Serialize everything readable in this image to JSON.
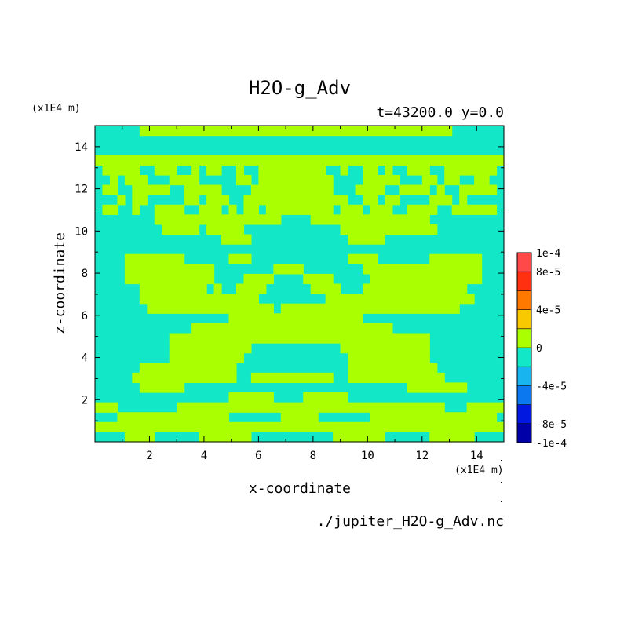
{
  "chart_data": {
    "type": "heatmap",
    "title": "H2O-g_Adv",
    "subtitle": "t=43200.0 y=0.0",
    "xlabel": "x-coordinate",
    "ylabel": "z-coordinate",
    "x_unit": "(x1E4 m)",
    "y_unit": "(x1E4 m)",
    "source": "./jupiter_H2O-g_Adv.nc",
    "xlim": [
      0.0,
      15.0
    ],
    "ylim": [
      0.0,
      15.0
    ],
    "x_ticks": [
      2,
      4,
      6,
      8,
      10,
      12,
      14
    ],
    "y_ticks": [
      2,
      4,
      6,
      8,
      10,
      12,
      14
    ],
    "x_tick_labels": [
      "2",
      "4",
      "6",
      "8",
      "10",
      "12",
      "14"
    ],
    "y_tick_labels": [
      "2",
      "4",
      "6",
      "8",
      "10",
      "12",
      "14"
    ],
    "colorbar": {
      "levels": [
        -0.0001,
        -8e-05,
        -6e-05,
        -4e-05,
        -2e-05,
        0,
        2e-05,
        4e-05,
        6e-05,
        8e-05,
        0.0001
      ],
      "colors": [
        "#0000a8",
        "#0018e0",
        "#0c78f0",
        "#18b4f0",
        "#12e8c8",
        "#aaff00",
        "#f8c800",
        "#ff7800",
        "#ff3010",
        "#ff4848"
      ],
      "tick_labels": [
        "1e-4",
        "8e-5",
        "4e-5",
        "0",
        "-4e-5",
        "-8e-5",
        "-1e-4"
      ]
    },
    "field_colors": {
      "negative": "#12e8c8",
      "positive": "#aaff00"
    },
    "rows": [
      "0000001111111111111111111111111111111111111111110000000",
      "0000000000000000000000000000000000000000000000000000000",
      "0000000000000000000000000000000000000000000000000000000",
      "1111111111111111111111111111111111111111111111111111111",
      "0111110011100101100100111111111001001101001110011111110",
      "0010111000111100000110111111111100001111100011011001100",
      "0110011111001111100001111111111100011110011110100111110",
      "0001011000001101110011111111111111001101100001110100000",
      "0110010011110011101011011111111101110111001111001111110",
      "0000000011111111111111111000011111111111111110000000000",
      "0000000001111101111100000000000001111111111111000000000",
      "0000000000000000011110000000000000111110000000000000000",
      "0000000000000000000000000000000000000000000000000000000",
      "0000111111110000001110000000000000111100000001111111000",
      "0000111111111111000000001111000000001111111111111111000",
      "0000111111111111000011110000111100000111111111111111000",
      "0000001111111110100111100000011110001111111111111100000",
      "0000001111111111111111000000000111111111111111111110000",
      "0000000111111111111111110111111111111111111111111000000",
      "0000000000000000001111111111111111110000000000000000000",
      "0000000000000111111111111111111111111111000000000000000",
      "0000000000111111111111111111111111111111111110000000000",
      "0000000000111111111110000000000001111111111110000000000",
      "0000000000111111111100000000000000111111111110000000000",
      "0000001111111111111000000000000000111111111111000000000",
      "0000011111111111111001111111111100111111111111100000000",
      "0000001111110000000000000000000000000000001111111100000",
      "0000000000000000001111110000111111000000000000000000000",
      "1110000000011111111111111111111111111111111111100011111",
      "0001111111111111110000000111110000000111111111111111110",
      "1111111111111111111111111111111111111111111111111111111",
      "0000111100000011111110000000000011111110000001111110000"
    ]
  }
}
